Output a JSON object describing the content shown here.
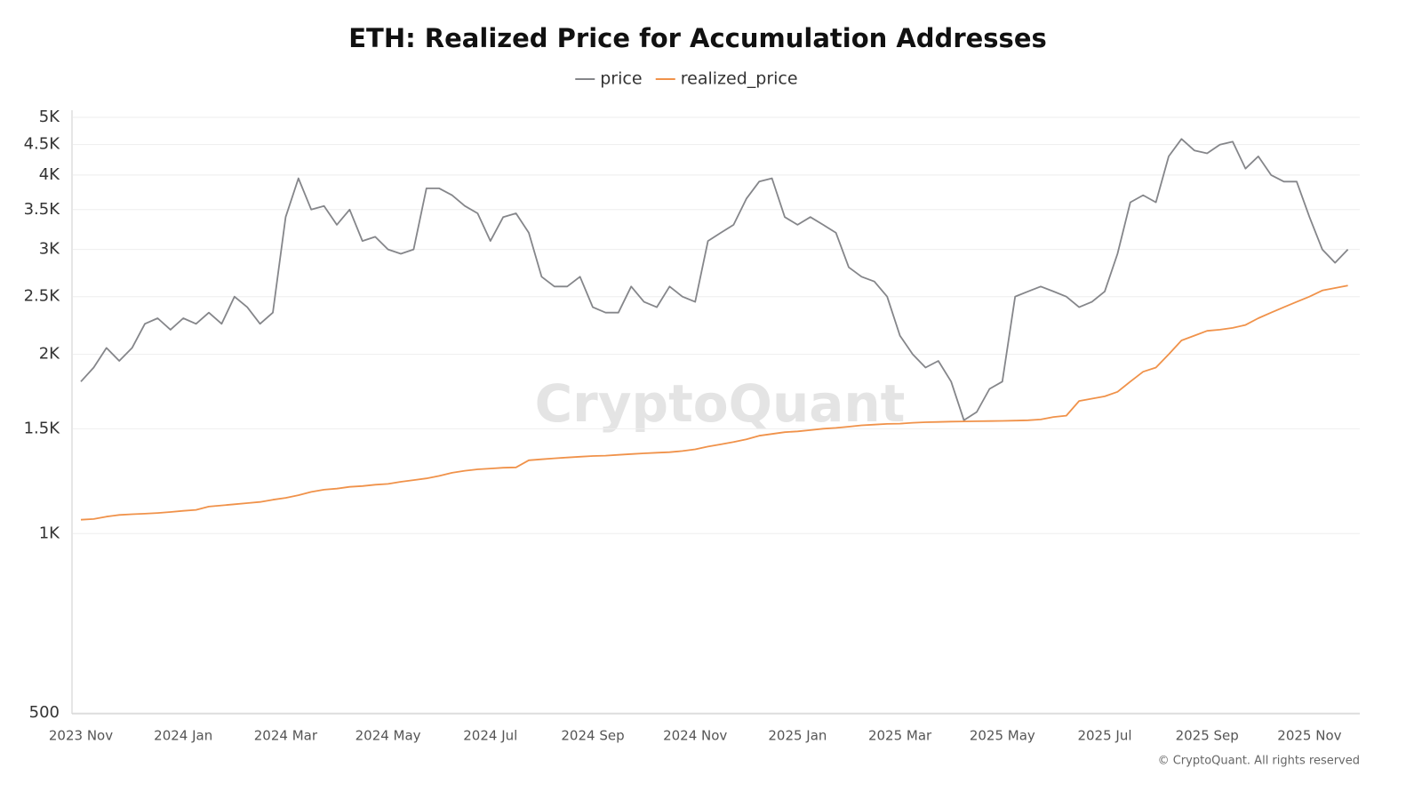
{
  "chart_data": {
    "type": "line",
    "title": "ETH: Realized Price for Accumulation Addresses",
    "watermark": "CryptoQuant",
    "credit": "© CryptoQuant. All rights reserved",
    "yscale": "log",
    "grid": true,
    "legend": "top",
    "ylim": [
      500,
      5000
    ],
    "yticks": [
      500,
      {
        "value": 1000,
        "label": "1K"
      },
      {
        "value": 1500,
        "label": "1.5K"
      },
      {
        "value": 2000,
        "label": "2K"
      },
      {
        "value": 2500,
        "label": "2.5K"
      },
      {
        "value": 3000,
        "label": "3K"
      },
      {
        "value": 3500,
        "label": "3.5K"
      },
      {
        "value": 4000,
        "label": "4K"
      },
      {
        "value": 4500,
        "label": "4.5K"
      },
      {
        "value": 5000,
        "label": "5K"
      }
    ],
    "categories": [
      "2023 Nov",
      null,
      null,
      null,
      null,
      null,
      null,
      null,
      "2024 Jan",
      null,
      null,
      null,
      null,
      null,
      null,
      null,
      "2024 Mar",
      null,
      null,
      null,
      null,
      null,
      null,
      null,
      "2024 May",
      null,
      null,
      null,
      null,
      null,
      null,
      null,
      "2024 Jul",
      null,
      null,
      null,
      null,
      null,
      null,
      null,
      "2024 Sep",
      null,
      null,
      null,
      null,
      null,
      null,
      null,
      "2024 Nov",
      null,
      null,
      null,
      null,
      null,
      null,
      null,
      "2025 Jan",
      null,
      null,
      null,
      null,
      null,
      null,
      null,
      "2025 Mar",
      null,
      null,
      null,
      null,
      null,
      null,
      null,
      "2025 May",
      null,
      null,
      null,
      null,
      null,
      null,
      null,
      "2025 Jul",
      null,
      null,
      null,
      null,
      null,
      null,
      null,
      "2025 Sep",
      null,
      null,
      null,
      null,
      null,
      null,
      null,
      "2025 Nov",
      null,
      null,
      null
    ],
    "series": [
      {
        "name": "price",
        "color": "#85868a",
        "values": [
          1800,
          1900,
          2050,
          1950,
          2050,
          2250,
          2300,
          2200,
          2300,
          2250,
          2350,
          2250,
          2500,
          2400,
          2250,
          2350,
          3400,
          3950,
          3500,
          3550,
          3300,
          3500,
          3100,
          3150,
          3000,
          2950,
          3000,
          3800,
          3800,
          3700,
          3550,
          3450,
          3100,
          3400,
          3450,
          3200,
          2700,
          2600,
          2600,
          2700,
          2400,
          2350,
          2350,
          2600,
          2450,
          2400,
          2600,
          2500,
          2450,
          3100,
          3200,
          3300,
          3650,
          3900,
          3950,
          3400,
          3300,
          3400,
          3300,
          3200,
          2800,
          2700,
          2650,
          2500,
          2150,
          2000,
          1900,
          1950,
          1800,
          1550,
          1600,
          1750,
          1800,
          2500,
          2550,
          2600,
          2550,
          2500,
          2400,
          2450,
          2550,
          2950,
          3600,
          3700,
          3600,
          4300,
          4600,
          4400,
          4350,
          4500,
          4550,
          4100,
          4300,
          4000,
          3900,
          3900,
          3400,
          3000,
          2850,
          3000
        ]
      },
      {
        "name": "realized_price",
        "color": "#f0924a",
        "values": [
          1055,
          1058,
          1068,
          1075,
          1078,
          1080,
          1083,
          1087,
          1092,
          1096,
          1110,
          1115,
          1120,
          1125,
          1130,
          1140,
          1148,
          1160,
          1175,
          1185,
          1190,
          1198,
          1202,
          1208,
          1212,
          1222,
          1230,
          1238,
          1250,
          1265,
          1275,
          1282,
          1286,
          1290,
          1292,
          1328,
          1333,
          1338,
          1342,
          1346,
          1350,
          1352,
          1356,
          1360,
          1364,
          1367,
          1370,
          1376,
          1385,
          1400,
          1412,
          1425,
          1440,
          1460,
          1470,
          1480,
          1485,
          1492,
          1500,
          1505,
          1512,
          1520,
          1524,
          1528,
          1530,
          1535,
          1538,
          1540,
          1542,
          1543,
          1544,
          1545,
          1546,
          1548,
          1550,
          1555,
          1570,
          1578,
          1670,
          1685,
          1700,
          1730,
          1800,
          1870,
          1900,
          2000,
          2110,
          2150,
          2190,
          2200,
          2215,
          2240,
          2300,
          2350,
          2400,
          2450,
          2500,
          2560,
          2585,
          2610
        ]
      }
    ]
  }
}
